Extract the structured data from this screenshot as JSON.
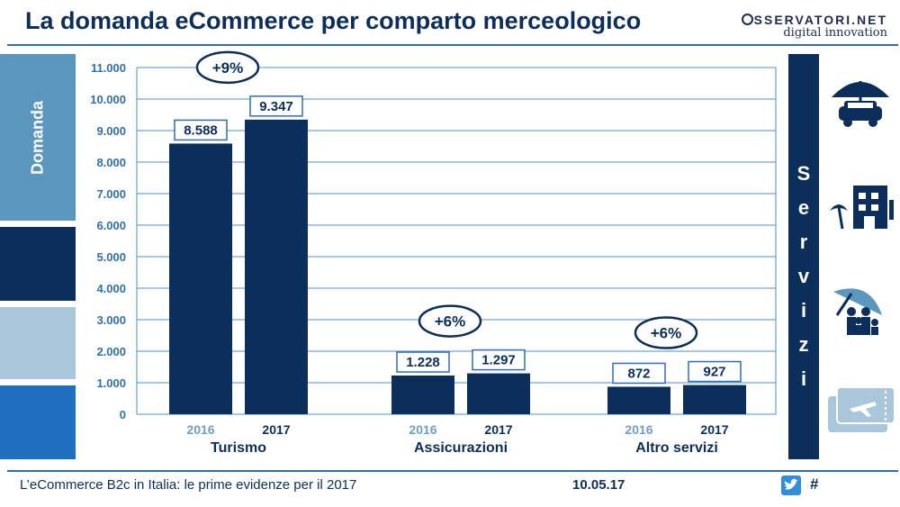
{
  "header": {
    "title": "La domanda eCommerce per comparto merceologico"
  },
  "logo": {
    "brand": "SSERVATORI.NET",
    "tagline": "digital innovation"
  },
  "side_bands": {
    "label": "Domanda",
    "colors": [
      "#5b96bf",
      "#0b2e5a",
      "#a9c6da",
      "#1f6fc1"
    ]
  },
  "right_panel": {
    "letters": [
      "S",
      "e",
      "r",
      "v",
      "i",
      "z",
      "i"
    ],
    "icons": [
      "umbrella-car-icon",
      "beach-hotel-icon",
      "family-umbrella-icon",
      "boarding-pass-icon"
    ]
  },
  "chart_data": {
    "type": "bar",
    "title": "",
    "ylim": [
      0,
      11000
    ],
    "yticks": [
      "0",
      "1.000",
      "2.000",
      "3.000",
      "4.000",
      "5.000",
      "6.000",
      "7.000",
      "8.000",
      "9.000",
      "10.000",
      "11.000"
    ],
    "groups": [
      {
        "name": "Turismo",
        "growth": "+9%",
        "bars": [
          {
            "year": "2016",
            "value": 8588,
            "label": "8.588"
          },
          {
            "year": "2017",
            "value": 9347,
            "label": "9.347"
          }
        ]
      },
      {
        "name": "Assicurazioni",
        "growth": "+6%",
        "bars": [
          {
            "year": "2016",
            "value": 1228,
            "label": "1.228"
          },
          {
            "year": "2017",
            "value": 1297,
            "label": "1.297"
          }
        ]
      },
      {
        "name": "Altro servizi",
        "growth": "+6%",
        "bars": [
          {
            "year": "2016",
            "value": 872,
            "label": "872"
          },
          {
            "year": "2017",
            "value": 927,
            "label": "927"
          }
        ]
      }
    ],
    "bar_color": "#0b2e5a",
    "grid_color": "#4a90d9",
    "year_colors": {
      "2016": "#6e9fc4",
      "2017": "#0b2e5a"
    }
  },
  "footer": {
    "left_text": "L’eCommerce B2c in Italia: le prime evidenze per il 2017",
    "date": "10.05.17",
    "hashtag": "#"
  }
}
